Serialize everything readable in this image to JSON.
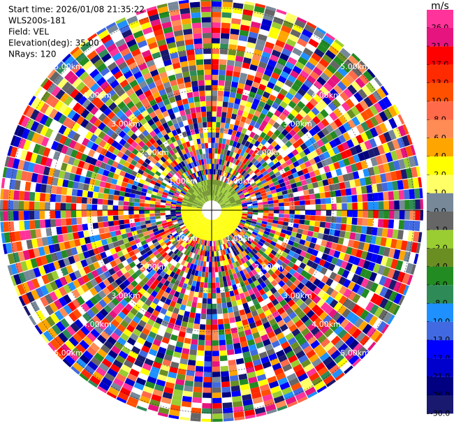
{
  "header": {
    "lines": [
      "Start time: 2026/01/08 21:35:22",
      "WLS200s-181",
      "Field: VEL",
      "Elevation(deg): 35.00",
      "NRays: 120"
    ]
  },
  "chart_data": {
    "type": "ppi",
    "range_rings": [
      {
        "value": 1,
        "label": "1.00km"
      },
      {
        "value": 2,
        "label": "2.00km"
      },
      {
        "value": 3,
        "label": "3.00km"
      },
      {
        "value": 4,
        "label": "4.00km"
      },
      {
        "value": 5,
        "label": "5.00km"
      }
    ],
    "colorbar": {
      "units": "m/s",
      "ticks": [
        {
          "value": 26,
          "label": "26.0"
        },
        {
          "value": 21,
          "label": "21.0"
        },
        {
          "value": 17,
          "label": "17.0"
        },
        {
          "value": 13,
          "label": "13.0"
        },
        {
          "value": 10,
          "label": "10.0"
        },
        {
          "value": 8,
          "label": "8.0"
        },
        {
          "value": 6,
          "label": "6.0"
        },
        {
          "value": 4,
          "label": "4.0"
        },
        {
          "value": 2,
          "label": "2.0"
        },
        {
          "value": 1,
          "label": "1.0"
        },
        {
          "value": 0,
          "label": "0.0"
        },
        {
          "value": -1,
          "label": "-1.0"
        },
        {
          "value": -2,
          "label": "-2.0"
        },
        {
          "value": -4,
          "label": "-4.0"
        },
        {
          "value": -6,
          "label": "-6.0"
        },
        {
          "value": -8,
          "label": "-8.0"
        },
        {
          "value": -10,
          "label": "-10.0"
        },
        {
          "value": -13,
          "label": "-13.0"
        },
        {
          "value": -17,
          "label": "-17.0"
        },
        {
          "value": -21,
          "label": "-21.0"
        },
        {
          "value": -26,
          "label": "-26.0"
        },
        {
          "value": -30,
          "label": "-30.0"
        }
      ],
      "colors": [
        "#ff3399",
        "#e6147f",
        "#ff0000",
        "#ff2a00",
        "#ff5000",
        "#ff6a4a",
        "#ff8c55",
        "#ffa500",
        "#ffff00",
        "#ffff66",
        "#778899",
        "#666666",
        "#9acd32",
        "#6b8e23",
        "#228b22",
        "#2e8b57",
        "#1e90ff",
        "#4169e1",
        "#0000ff",
        "#0000cd",
        "#000080",
        "#191970"
      ]
    }
  }
}
